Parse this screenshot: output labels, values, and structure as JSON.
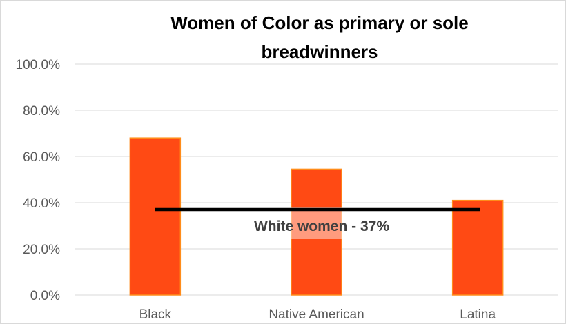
{
  "chart_data": {
    "type": "bar",
    "title_lines": [
      "Women of Color as primary or sole",
      "breadwinners"
    ],
    "categories": [
      "Black",
      "Native American",
      "Latina"
    ],
    "values": [
      68.0,
      54.5,
      41.0
    ],
    "ylim": [
      0,
      100
    ],
    "yticks": [
      0,
      20,
      40,
      60,
      80,
      100
    ],
    "ytick_labels": [
      "0.0%",
      "20.0%",
      "40.0%",
      "60.0%",
      "80.0%",
      "100.0%"
    ],
    "xlabel": "",
    "ylabel": "",
    "grid": true,
    "legend": "none",
    "bar_color": "#FF4A14",
    "bar_edge_color": "#FF8C1A",
    "reference_line": {
      "value": 37,
      "label": "White women - 37%",
      "color": "#000000"
    }
  }
}
